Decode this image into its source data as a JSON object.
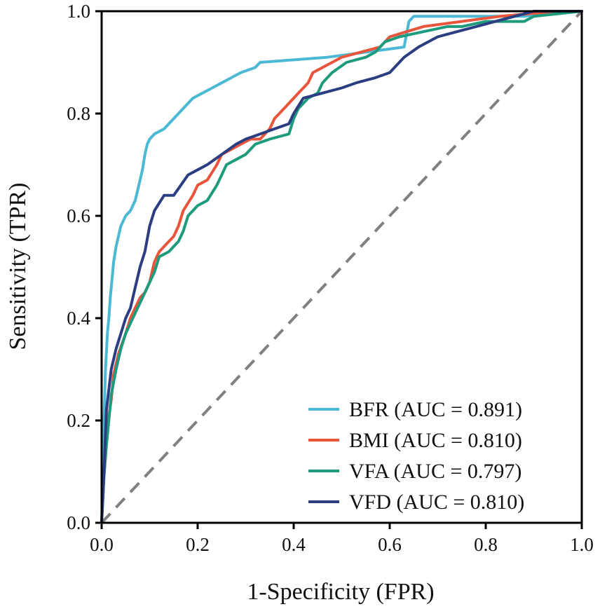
{
  "chart_data": {
    "type": "line",
    "title": "",
    "xlabel": "1-Specificity (FPR)",
    "ylabel": "Sensitivity (TPR)",
    "xlim": [
      0,
      1
    ],
    "ylim": [
      0,
      1
    ],
    "x_ticks": [
      "0.0",
      "0.2",
      "0.4",
      "0.6",
      "0.8",
      "1.0"
    ],
    "y_ticks": [
      "0.0",
      "0.2",
      "0.4",
      "0.6",
      "0.8",
      "1.0"
    ],
    "grid": false,
    "legend_position": "bottom-right",
    "reference_line": {
      "name": "chance",
      "color": "#808080",
      "style": "dashed",
      "points": [
        [
          0,
          0
        ],
        [
          1,
          1
        ]
      ]
    },
    "series": [
      {
        "name": "BFR",
        "label": "BFR (AUC = 0.891)",
        "color": "#4BB8D4",
        "points": [
          [
            0,
            0
          ],
          [
            0.003,
            0.12
          ],
          [
            0.005,
            0.2
          ],
          [
            0.008,
            0.3
          ],
          [
            0.012,
            0.37
          ],
          [
            0.015,
            0.4
          ],
          [
            0.018,
            0.44
          ],
          [
            0.022,
            0.48
          ],
          [
            0.025,
            0.51
          ],
          [
            0.03,
            0.54
          ],
          [
            0.035,
            0.56
          ],
          [
            0.04,
            0.58
          ],
          [
            0.045,
            0.59
          ],
          [
            0.05,
            0.6
          ],
          [
            0.06,
            0.61
          ],
          [
            0.065,
            0.62
          ],
          [
            0.07,
            0.63
          ],
          [
            0.075,
            0.65
          ],
          [
            0.08,
            0.67
          ],
          [
            0.085,
            0.69
          ],
          [
            0.09,
            0.72
          ],
          [
            0.095,
            0.74
          ],
          [
            0.1,
            0.75
          ],
          [
            0.11,
            0.76
          ],
          [
            0.13,
            0.77
          ],
          [
            0.14,
            0.78
          ],
          [
            0.15,
            0.79
          ],
          [
            0.17,
            0.81
          ],
          [
            0.19,
            0.83
          ],
          [
            0.21,
            0.84
          ],
          [
            0.23,
            0.85
          ],
          [
            0.25,
            0.86
          ],
          [
            0.27,
            0.87
          ],
          [
            0.29,
            0.88
          ],
          [
            0.32,
            0.89
          ],
          [
            0.33,
            0.9
          ],
          [
            0.47,
            0.91
          ],
          [
            0.55,
            0.92
          ],
          [
            0.63,
            0.93
          ],
          [
            0.64,
            0.98
          ],
          [
            0.65,
            0.99
          ],
          [
            0.88,
            0.99
          ],
          [
            0.95,
            1.0
          ],
          [
            1,
            1
          ]
        ]
      },
      {
        "name": "BMI",
        "label": "BMI (AUC = 0.810)",
        "color": "#E8553A",
        "points": [
          [
            0,
            0
          ],
          [
            0.005,
            0.1
          ],
          [
            0.01,
            0.17
          ],
          [
            0.015,
            0.21
          ],
          [
            0.02,
            0.24
          ],
          [
            0.025,
            0.29
          ],
          [
            0.035,
            0.33
          ],
          [
            0.05,
            0.37
          ],
          [
            0.06,
            0.4
          ],
          [
            0.07,
            0.42
          ],
          [
            0.08,
            0.44
          ],
          [
            0.09,
            0.45
          ],
          [
            0.1,
            0.47
          ],
          [
            0.11,
            0.51
          ],
          [
            0.12,
            0.53
          ],
          [
            0.13,
            0.54
          ],
          [
            0.15,
            0.56
          ],
          [
            0.16,
            0.58
          ],
          [
            0.17,
            0.61
          ],
          [
            0.19,
            0.64
          ],
          [
            0.2,
            0.66
          ],
          [
            0.22,
            0.67
          ],
          [
            0.24,
            0.7
          ],
          [
            0.25,
            0.72
          ],
          [
            0.27,
            0.73
          ],
          [
            0.29,
            0.74
          ],
          [
            0.31,
            0.75
          ],
          [
            0.33,
            0.75
          ],
          [
            0.34,
            0.76
          ],
          [
            0.35,
            0.77
          ],
          [
            0.36,
            0.79
          ],
          [
            0.38,
            0.81
          ],
          [
            0.39,
            0.82
          ],
          [
            0.41,
            0.84
          ],
          [
            0.43,
            0.86
          ],
          [
            0.44,
            0.88
          ],
          [
            0.48,
            0.9
          ],
          [
            0.5,
            0.91
          ],
          [
            0.58,
            0.93
          ],
          [
            0.6,
            0.95
          ],
          [
            0.67,
            0.97
          ],
          [
            0.83,
            0.99
          ],
          [
            0.95,
            1.0
          ],
          [
            1,
            1
          ]
        ]
      },
      {
        "name": "VFA",
        "label": "VFA (AUC = 0.797)",
        "color": "#1E9A7C",
        "points": [
          [
            0,
            0
          ],
          [
            0.005,
            0.09
          ],
          [
            0.01,
            0.15
          ],
          [
            0.015,
            0.2
          ],
          [
            0.02,
            0.25
          ],
          [
            0.03,
            0.3
          ],
          [
            0.04,
            0.34
          ],
          [
            0.05,
            0.37
          ],
          [
            0.06,
            0.39
          ],
          [
            0.07,
            0.41
          ],
          [
            0.08,
            0.43
          ],
          [
            0.09,
            0.45
          ],
          [
            0.1,
            0.47
          ],
          [
            0.11,
            0.49
          ],
          [
            0.12,
            0.52
          ],
          [
            0.14,
            0.53
          ],
          [
            0.16,
            0.55
          ],
          [
            0.17,
            0.57
          ],
          [
            0.18,
            0.6
          ],
          [
            0.2,
            0.62
          ],
          [
            0.22,
            0.63
          ],
          [
            0.24,
            0.66
          ],
          [
            0.25,
            0.68
          ],
          [
            0.26,
            0.7
          ],
          [
            0.28,
            0.71
          ],
          [
            0.3,
            0.72
          ],
          [
            0.32,
            0.74
          ],
          [
            0.35,
            0.75
          ],
          [
            0.39,
            0.76
          ],
          [
            0.4,
            0.79
          ],
          [
            0.41,
            0.81
          ],
          [
            0.43,
            0.83
          ],
          [
            0.45,
            0.84
          ],
          [
            0.46,
            0.86
          ],
          [
            0.48,
            0.88
          ],
          [
            0.51,
            0.9
          ],
          [
            0.55,
            0.91
          ],
          [
            0.57,
            0.92
          ],
          [
            0.59,
            0.94
          ],
          [
            0.62,
            0.95
          ],
          [
            0.67,
            0.96
          ],
          [
            0.72,
            0.97
          ],
          [
            0.75,
            0.97
          ],
          [
            0.8,
            0.98
          ],
          [
            0.88,
            0.98
          ],
          [
            0.9,
            0.99
          ],
          [
            1,
            1
          ]
        ]
      },
      {
        "name": "VFD",
        "label": "VFD (AUC = 0.810)",
        "color": "#2C3E82",
        "points": [
          [
            0,
            0
          ],
          [
            0.005,
            0.1
          ],
          [
            0.01,
            0.22
          ],
          [
            0.02,
            0.3
          ],
          [
            0.03,
            0.34
          ],
          [
            0.05,
            0.4
          ],
          [
            0.06,
            0.42
          ],
          [
            0.07,
            0.46
          ],
          [
            0.08,
            0.5
          ],
          [
            0.09,
            0.53
          ],
          [
            0.1,
            0.58
          ],
          [
            0.11,
            0.61
          ],
          [
            0.13,
            0.64
          ],
          [
            0.15,
            0.64
          ],
          [
            0.18,
            0.68
          ],
          [
            0.2,
            0.69
          ],
          [
            0.22,
            0.7
          ],
          [
            0.25,
            0.72
          ],
          [
            0.28,
            0.74
          ],
          [
            0.3,
            0.75
          ],
          [
            0.33,
            0.76
          ],
          [
            0.36,
            0.77
          ],
          [
            0.39,
            0.78
          ],
          [
            0.4,
            0.8
          ],
          [
            0.42,
            0.83
          ],
          [
            0.46,
            0.84
          ],
          [
            0.5,
            0.85
          ],
          [
            0.53,
            0.86
          ],
          [
            0.57,
            0.87
          ],
          [
            0.6,
            0.88
          ],
          [
            0.63,
            0.91
          ],
          [
            0.66,
            0.93
          ],
          [
            0.7,
            0.95
          ],
          [
            0.74,
            0.96
          ],
          [
            0.78,
            0.97
          ],
          [
            0.82,
            0.98
          ],
          [
            0.86,
            0.99
          ],
          [
            0.9,
            1.0
          ],
          [
            1,
            1
          ]
        ]
      }
    ]
  }
}
